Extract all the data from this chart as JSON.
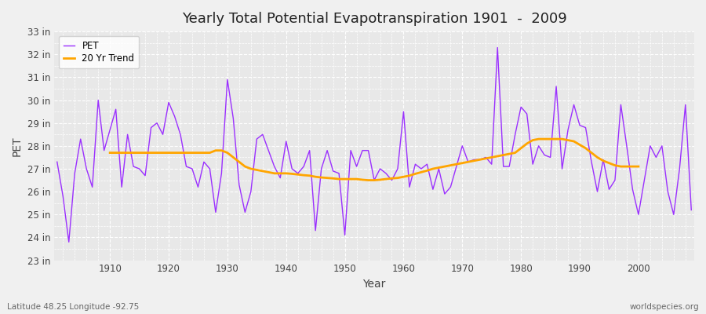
{
  "title": "Yearly Total Potential Evapotranspiration 1901  -  2009",
  "xlabel": "Year",
  "ylabel": "PET",
  "subtitle_left": "Latitude 48.25 Longitude -92.75",
  "subtitle_right": "worldspecies.org",
  "ylim": [
    23,
    33
  ],
  "yticks": [
    23,
    24,
    25,
    26,
    27,
    28,
    29,
    30,
    31,
    32,
    33
  ],
  "ytick_labels": [
    "23 in",
    "24 in",
    "25 in",
    "26 in",
    "27 in",
    "28 in",
    "29 in",
    "30 in",
    "31 in",
    "32 in",
    "33 in"
  ],
  "pet_color": "#9B30FF",
  "trend_color": "#FFA500",
  "bg_color": "#F0F0F0",
  "plot_bg_color": "#E8E8E8",
  "grid_color": "#FFFFFF",
  "years": [
    1901,
    1902,
    1903,
    1904,
    1905,
    1906,
    1907,
    1908,
    1909,
    1910,
    1911,
    1912,
    1913,
    1914,
    1915,
    1916,
    1917,
    1918,
    1919,
    1920,
    1921,
    1922,
    1923,
    1924,
    1925,
    1926,
    1927,
    1928,
    1929,
    1930,
    1931,
    1932,
    1933,
    1934,
    1935,
    1936,
    1937,
    1938,
    1939,
    1940,
    1941,
    1942,
    1943,
    1944,
    1945,
    1946,
    1947,
    1948,
    1949,
    1950,
    1951,
    1952,
    1953,
    1954,
    1955,
    1956,
    1957,
    1958,
    1959,
    1960,
    1961,
    1962,
    1963,
    1964,
    1965,
    1966,
    1967,
    1968,
    1969,
    1970,
    1971,
    1972,
    1973,
    1974,
    1975,
    1976,
    1977,
    1978,
    1979,
    1980,
    1981,
    1982,
    1983,
    1984,
    1985,
    1986,
    1987,
    1988,
    1989,
    1990,
    1991,
    1992,
    1993,
    1994,
    1995,
    1996,
    1997,
    1998,
    1999,
    2000,
    2001,
    2002,
    2003,
    2004,
    2005,
    2006,
    2007,
    2008,
    2009
  ],
  "pet_values": [
    27.3,
    25.8,
    23.8,
    26.8,
    28.3,
    27.0,
    26.2,
    30.0,
    27.8,
    28.7,
    29.6,
    26.2,
    28.5,
    27.1,
    27.0,
    26.7,
    28.8,
    29.0,
    28.5,
    29.9,
    29.3,
    28.5,
    27.1,
    27.0,
    26.2,
    27.3,
    27.0,
    25.1,
    26.8,
    30.9,
    29.2,
    26.3,
    25.1,
    26.0,
    28.3,
    28.5,
    27.8,
    27.1,
    26.6,
    28.2,
    27.0,
    26.8,
    27.1,
    27.8,
    24.3,
    27.0,
    27.8,
    26.9,
    26.8,
    24.1,
    27.8,
    27.1,
    27.8,
    27.8,
    26.5,
    27.0,
    26.8,
    26.5,
    27.0,
    29.5,
    26.2,
    27.2,
    27.0,
    27.2,
    26.1,
    27.0,
    25.9,
    26.2,
    27.1,
    28.0,
    27.3,
    27.4,
    27.4,
    27.5,
    27.2,
    32.3,
    27.1,
    27.1,
    28.5,
    29.7,
    29.4,
    27.2,
    28.0,
    27.6,
    27.5,
    30.6,
    27.0,
    28.7,
    29.8,
    28.9,
    28.8,
    27.3,
    26.0,
    27.4,
    26.1,
    26.5,
    29.8,
    28.0,
    26.1,
    25.0,
    26.5,
    28.0,
    27.5,
    28.0,
    26.0,
    25.0,
    27.0,
    29.8,
    25.2
  ],
  "trend_years": [
    1910,
    1911,
    1912,
    1913,
    1914,
    1915,
    1916,
    1917,
    1918,
    1919,
    1920,
    1921,
    1922,
    1923,
    1924,
    1925,
    1926,
    1927,
    1928,
    1929,
    1930,
    1931,
    1932,
    1933,
    1934,
    1935,
    1936,
    1937,
    1938,
    1939,
    1940,
    1941,
    1942,
    1943,
    1944,
    1945,
    1946,
    1947,
    1948,
    1949,
    1950,
    1951,
    1952,
    1953,
    1954,
    1955,
    1956,
    1957,
    1958,
    1959,
    1960,
    1961,
    1962,
    1963,
    1964,
    1965,
    1966,
    1967,
    1968,
    1969,
    1970,
    1971,
    1972,
    1973,
    1974,
    1975,
    1976,
    1977,
    1978,
    1979,
    1980,
    1981,
    1982,
    1983,
    1984,
    1985,
    1986,
    1987,
    1988,
    1989,
    1990,
    1991,
    1992,
    1993,
    1994,
    1995,
    1996,
    1997,
    1998,
    1999,
    2000
  ],
  "trend_values": [
    27.7,
    27.7,
    27.7,
    27.7,
    27.7,
    27.7,
    27.7,
    27.7,
    27.7,
    27.7,
    27.7,
    27.7,
    27.7,
    27.7,
    27.7,
    27.7,
    27.7,
    27.7,
    27.8,
    27.8,
    27.7,
    27.5,
    27.3,
    27.1,
    27.0,
    26.95,
    26.9,
    26.85,
    26.8,
    26.8,
    26.8,
    26.78,
    26.75,
    26.72,
    26.7,
    26.65,
    26.62,
    26.6,
    26.58,
    26.55,
    26.55,
    26.55,
    26.55,
    26.52,
    26.5,
    26.5,
    26.52,
    26.55,
    26.58,
    26.6,
    26.65,
    26.7,
    26.78,
    26.85,
    26.92,
    27.0,
    27.05,
    27.1,
    27.15,
    27.2,
    27.25,
    27.3,
    27.35,
    27.4,
    27.45,
    27.5,
    27.55,
    27.6,
    27.65,
    27.7,
    27.9,
    28.1,
    28.25,
    28.3,
    28.3,
    28.3,
    28.3,
    28.3,
    28.25,
    28.2,
    28.05,
    27.9,
    27.7,
    27.5,
    27.35,
    27.25,
    27.15,
    27.1,
    27.1,
    27.1,
    27.1
  ]
}
